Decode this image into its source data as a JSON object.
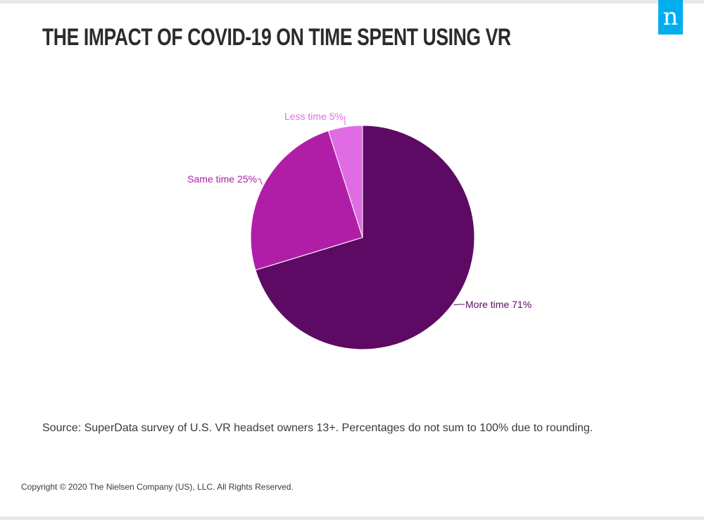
{
  "header": {
    "title": "THE IMPACT OF COVID-19 ON TIME SPENT USING VR",
    "logo_text": "n"
  },
  "chart_data": {
    "type": "pie",
    "title": "THE IMPACT OF COVID-19 ON TIME SPENT USING VR",
    "categories": [
      "More time",
      "Same time",
      "Less time"
    ],
    "values": [
      71,
      25,
      5
    ],
    "unit": "%",
    "labels": [
      "More time 71%",
      "Same time 25%",
      "Less time 5%"
    ],
    "colors": [
      "#5c0a64",
      "#b01ea8",
      "#e06ce4"
    ],
    "start": "12 o'clock",
    "direction": "clockwise"
  },
  "footer": {
    "source": "Source: SuperData survey of U.S. VR headset owners 13+. Percentages do not sum to 100% due to rounding.",
    "copyright": "Copyright © 2020 The Nielsen Company (US), LLC. All Rights Reserved."
  }
}
